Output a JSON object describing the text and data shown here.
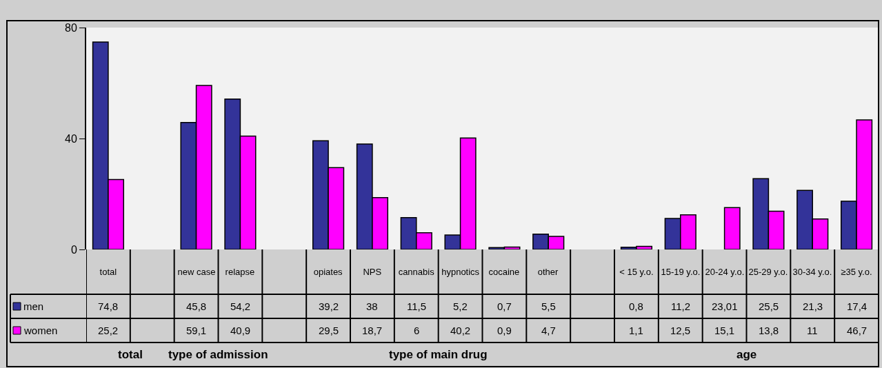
{
  "chart_data": {
    "type": "bar",
    "categories": [
      "total",
      null,
      "new case",
      "relapse",
      null,
      "opiates",
      "NPS",
      "cannabis",
      "hypnotics",
      "cocaine",
      "other",
      null,
      "< 15 y.o.",
      "15-19 y.o.",
      "20-24 y.o.",
      "25-29 y.o.",
      "30-34 y.o.",
      "≥35 y.o."
    ],
    "series": [
      {
        "name": "men",
        "color": "#333399",
        "values": [
          74.8,
          null,
          45.8,
          54.2,
          null,
          39.2,
          38,
          11.5,
          5.2,
          0.7,
          5.5,
          null,
          0.8,
          11.2,
          null,
          25.5,
          21.3,
          17.4
        ],
        "value_labels": [
          "74,8",
          null,
          "45,8",
          "54,2",
          null,
          "39,2",
          "38",
          "11,5",
          "5,2",
          "0,7",
          "5,5",
          null,
          "0,8",
          "11,2",
          "23,01",
          "25,5",
          "21,3",
          "17,4"
        ]
      },
      {
        "name": "women",
        "color": "#ff00ff",
        "values": [
          25.2,
          null,
          59.1,
          40.9,
          null,
          29.5,
          18.7,
          6,
          40.2,
          0.9,
          4.7,
          null,
          1.1,
          12.5,
          15.1,
          13.8,
          11,
          46.7
        ],
        "value_labels": [
          "25,2",
          null,
          "59,1",
          "40,9",
          null,
          "29,5",
          "18,7",
          "6",
          "40,2",
          "0,9",
          "4,7",
          null,
          "1,1",
          "12,5",
          "15,1",
          "13,8",
          "11",
          "46,7"
        ]
      }
    ],
    "ylim": [
      0,
      80
    ],
    "yticks": [
      0,
      40,
      80
    ],
    "grid": false,
    "legend": "bottom left",
    "annotations": [
      "total",
      "type of admission",
      "type of main drug",
      "age"
    ]
  }
}
